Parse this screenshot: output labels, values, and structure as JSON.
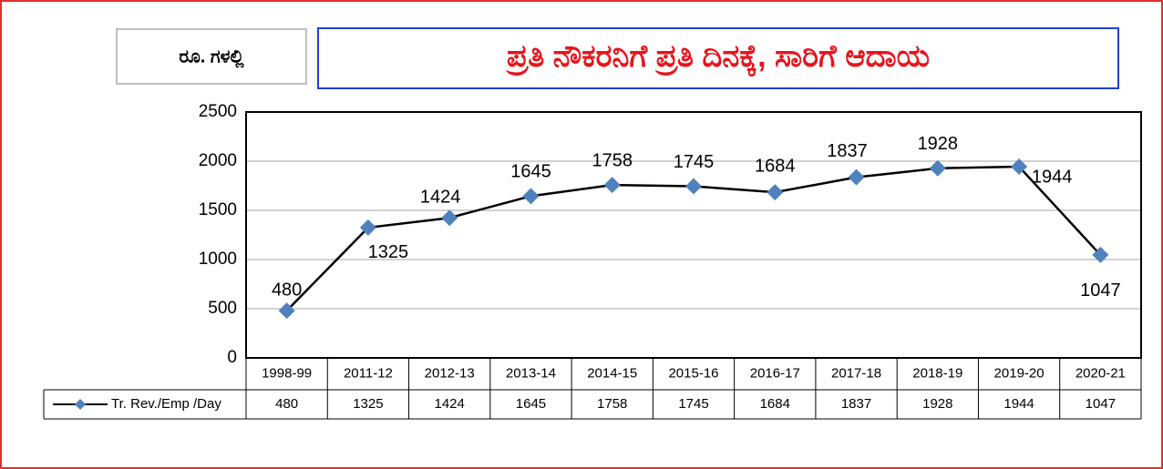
{
  "unit_label": "ರೂ. ಗಳಲ್ಲಿ",
  "chart_data": {
    "type": "line",
    "title": "ಪ್ರತಿ ನೌಕರನಿಗೆ ಪ್ರತಿ ದಿನಕ್ಕೆ, ಸಾರಿಗೆ ಆದಾಯ",
    "categories": [
      "1998-99",
      "2011-12",
      "2012-13",
      "2013-14",
      "2014-15",
      "2015-16",
      "2016-17",
      "2017-18",
      "2018-19",
      "2019-20",
      "2020-21"
    ],
    "series": [
      {
        "name": "Tr. Rev./Emp /Day",
        "color": "#4f81bd",
        "values": [
          480,
          1325,
          1424,
          1645,
          1758,
          1745,
          1684,
          1837,
          1928,
          1944,
          1047
        ]
      }
    ],
    "ylim": [
      0,
      2500
    ],
    "yticks": [
      0,
      500,
      1000,
      1500,
      2000,
      2500
    ],
    "grid": true
  }
}
